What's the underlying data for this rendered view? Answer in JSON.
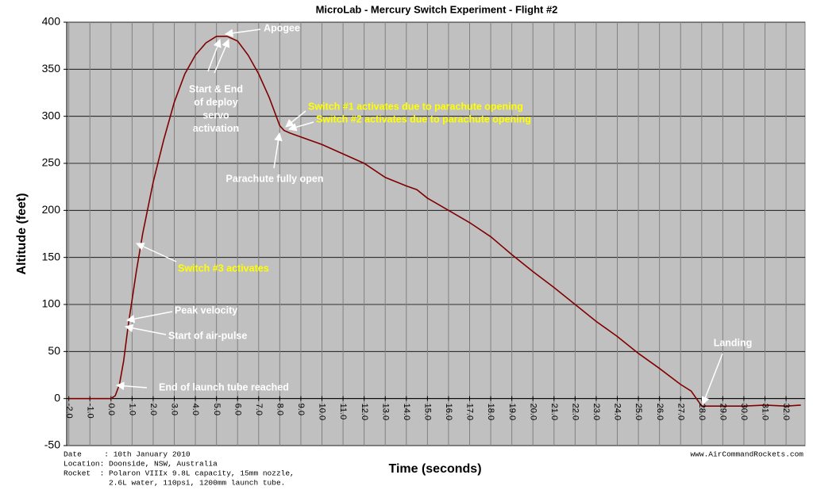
{
  "chart_data": {
    "type": "line",
    "title": "MicroLab - Mercury Switch Experiment - Flight #2",
    "xlabel": "Time (seconds)",
    "ylabel": "Altitude (feet)",
    "x": [
      -2.0,
      -1.5,
      -1.0,
      -0.5,
      0.0,
      0.2,
      0.4,
      0.6,
      0.8,
      1.0,
      1.2,
      1.5,
      2.0,
      2.5,
      3.0,
      3.5,
      4.0,
      4.5,
      5.0,
      5.5,
      6.0,
      6.5,
      7.0,
      7.5,
      8.0,
      8.2,
      8.5,
      9.0,
      10.0,
      11.0,
      12.0,
      13.0,
      14.0,
      14.5,
      15.0,
      16.0,
      17.0,
      18.0,
      19.0,
      20.0,
      21.0,
      22.0,
      23.0,
      24.0,
      25.0,
      26.0,
      27.0,
      27.5,
      28.0,
      29.0,
      30.0,
      31.0,
      32.0,
      32.7
    ],
    "series": [
      {
        "name": "Altitude",
        "color": "#800000",
        "values": [
          0,
          0,
          0,
          0,
          0,
          3,
          15,
          40,
          75,
          105,
          135,
          175,
          230,
          275,
          315,
          345,
          365,
          378,
          385,
          385,
          380,
          365,
          345,
          320,
          290,
          285,
          282,
          278,
          270,
          260,
          250,
          235,
          226,
          222,
          213,
          200,
          187,
          172,
          153,
          135,
          118,
          100,
          82,
          66,
          48,
          32,
          15,
          8,
          -8,
          -8,
          -8,
          -7,
          -8,
          -7
        ]
      }
    ],
    "xlim": [
      -2.1,
      32.9
    ],
    "ylim": [
      -50,
      400
    ],
    "yticks": [
      -50,
      0,
      50,
      100,
      150,
      200,
      250,
      300,
      350,
      400
    ],
    "xticks": [
      {
        "value": -2,
        "label": "-2.0"
      },
      {
        "value": -1,
        "label": "-1.0"
      },
      {
        "value": 0,
        "label": "0.0"
      },
      {
        "value": 1,
        "label": "1.0"
      },
      {
        "value": 2,
        "label": "2.0"
      },
      {
        "value": 3,
        "label": "3.0"
      },
      {
        "value": 4,
        "label": "4.0"
      },
      {
        "value": 5,
        "label": "5.0"
      },
      {
        "value": 6,
        "label": "6.0"
      },
      {
        "value": 7,
        "label": "7.0"
      },
      {
        "value": 8,
        "label": "8.0"
      },
      {
        "value": 9,
        "label": "9.0"
      },
      {
        "value": 10,
        "label": "10.0"
      },
      {
        "value": 11,
        "label": "11.0"
      },
      {
        "value": 12,
        "label": "12.0"
      },
      {
        "value": 13,
        "label": "13.0"
      },
      {
        "value": 14,
        "label": "14.0"
      },
      {
        "value": 15,
        "label": "15.0"
      },
      {
        "value": 16,
        "label": "16.0"
      },
      {
        "value": 17,
        "label": "17.0"
      },
      {
        "value": 18,
        "label": "18.0"
      },
      {
        "value": 19,
        "label": "19.0"
      },
      {
        "value": 20,
        "label": "20.0"
      },
      {
        "value": 21,
        "label": "21.0"
      },
      {
        "value": 22,
        "label": "22.0"
      },
      {
        "value": 23,
        "label": "23.0"
      },
      {
        "value": 24,
        "label": "24.0"
      },
      {
        "value": 25,
        "label": "25.0"
      },
      {
        "value": 26,
        "label": "26.0"
      },
      {
        "value": 27,
        "label": "27.0"
      },
      {
        "value": 28,
        "label": "28.0"
      },
      {
        "value": 29,
        "label": "29.0"
      },
      {
        "value": 30,
        "label": "30.0"
      },
      {
        "value": 31,
        "label": "31.0"
      },
      {
        "value": 32,
        "label": "32.0"
      }
    ],
    "grid": true,
    "annotations": [
      {
        "lines": [
          "Apogee"
        ],
        "color": "#ffffff"
      },
      {
        "lines": [
          "Start & End",
          "of deploy",
          "servo",
          "activation"
        ],
        "color": "#ffffff"
      },
      {
        "lines": [
          "Switch #1 activates due to parachute opening"
        ],
        "color": "#ffff00"
      },
      {
        "lines": [
          "Switch #2 activates due to parachute opening"
        ],
        "color": "#ffff00"
      },
      {
        "lines": [
          "Parachute fully open"
        ],
        "color": "#ffffff"
      },
      {
        "lines": [
          "Switch #3 activates"
        ],
        "color": "#ffff00"
      },
      {
        "lines": [
          "Peak velocity"
        ],
        "color": "#ffffff"
      },
      {
        "lines": [
          "Start of air-pulse"
        ],
        "color": "#ffffff"
      },
      {
        "lines": [
          "End of launch tube reached"
        ],
        "color": "#ffffff"
      },
      {
        "lines": [
          "Landing"
        ],
        "color": "#ffffff"
      }
    ],
    "notes": [
      "Date     : 10th January 2010",
      "Location: Doonside, NSW, Australia",
      "Rocket  : Polaron VIIIx 9.8L capacity, 15mm nozzle,",
      "          2.6L water, 110psi, 1200mm launch tube."
    ],
    "source": "www.AirCommandRockets.com"
  }
}
